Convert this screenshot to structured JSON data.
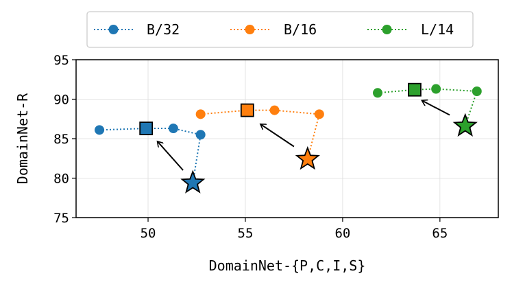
{
  "chart_data": {
    "type": "scatter",
    "xlabel": "DomainNet-{P,C,I,S}",
    "ylabel": "DomainNet-R",
    "xlim": [
      46.3,
      68.0
    ],
    "ylim": [
      75,
      95
    ],
    "xticks": [
      50,
      55,
      60,
      65
    ],
    "yticks": [
      75,
      80,
      85,
      90,
      95
    ],
    "grid": true,
    "legend_position": "top-center",
    "series": [
      {
        "name": "B/32",
        "color": "#1f77b4",
        "line_points": [
          {
            "x": 47.5,
            "y": 86.1
          },
          {
            "x": 49.9,
            "y": 86.3
          },
          {
            "x": 51.3,
            "y": 86.3
          },
          {
            "x": 52.7,
            "y": 85.5
          },
          {
            "x": 52.3,
            "y": 79.4
          }
        ],
        "square": {
          "x": 49.9,
          "y": 86.3
        },
        "star": {
          "x": 52.3,
          "y": 79.4
        },
        "arrow": {
          "from": {
            "x": 51.8,
            "y": 81.0
          },
          "to": {
            "x": 50.5,
            "y": 84.6
          }
        }
      },
      {
        "name": "B/16",
        "color": "#ff7f0e",
        "line_points": [
          {
            "x": 52.7,
            "y": 88.1
          },
          {
            "x": 55.1,
            "y": 88.6
          },
          {
            "x": 56.5,
            "y": 88.6
          },
          {
            "x": 58.8,
            "y": 88.1
          },
          {
            "x": 58.2,
            "y": 82.4
          }
        ],
        "square": {
          "x": 55.1,
          "y": 88.6
        },
        "star": {
          "x": 58.2,
          "y": 82.4
        },
        "arrow": {
          "from": {
            "x": 57.5,
            "y": 84.0
          },
          "to": {
            "x": 55.8,
            "y": 86.8
          }
        }
      },
      {
        "name": "L/14",
        "color": "#2ca02c",
        "line_points": [
          {
            "x": 61.8,
            "y": 90.8
          },
          {
            "x": 63.7,
            "y": 91.2
          },
          {
            "x": 64.8,
            "y": 91.3
          },
          {
            "x": 66.9,
            "y": 91.0
          },
          {
            "x": 66.3,
            "y": 86.6
          }
        ],
        "square": {
          "x": 63.7,
          "y": 91.2
        },
        "star": {
          "x": 66.3,
          "y": 86.6
        },
        "arrow": {
          "from": {
            "x": 65.5,
            "y": 88.0
          },
          "to": {
            "x": 64.1,
            "y": 89.8
          }
        }
      }
    ]
  }
}
